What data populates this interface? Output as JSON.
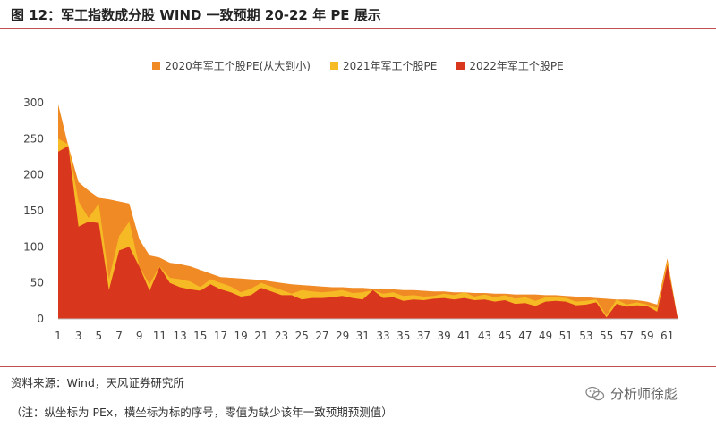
{
  "header": {
    "title": "图 12：军工指数成分股 WIND 一致预期 20-22 年 PE 展示"
  },
  "footer": {
    "source": "资料来源：Wind，天风证券研究所",
    "note": "（注：纵坐标为 PEx，横坐标为标的序号，零值为缺少该年一致预期预测值）",
    "watermark": "分析师徐彪"
  },
  "colors": {
    "s2020": "#f08a24",
    "s2021": "#f6bb24",
    "s2022": "#d9361e",
    "accent": "#c0504d"
  },
  "chart_data": {
    "type": "area",
    "ylim": [
      0,
      300
    ],
    "yticks": [
      0,
      50,
      100,
      150,
      200,
      250,
      300
    ],
    "xticks": [
      1,
      3,
      5,
      7,
      9,
      11,
      13,
      15,
      17,
      19,
      21,
      23,
      25,
      27,
      29,
      31,
      33,
      35,
      37,
      39,
      41,
      43,
      45,
      47,
      49,
      51,
      53,
      55,
      57,
      59,
      61
    ],
    "x": [
      1,
      2,
      3,
      4,
      5,
      6,
      7,
      8,
      9,
      10,
      11,
      12,
      13,
      14,
      15,
      16,
      17,
      18,
      19,
      20,
      21,
      22,
      23,
      24,
      25,
      26,
      27,
      28,
      29,
      30,
      31,
      32,
      33,
      34,
      35,
      36,
      37,
      38,
      39,
      40,
      41,
      42,
      43,
      44,
      45,
      46,
      47,
      48,
      49,
      50,
      51,
      52,
      53,
      54,
      55,
      56,
      57,
      58,
      59,
      60,
      61,
      62
    ],
    "series": [
      {
        "name": "2020年军工个股PE(从大到小)",
        "color_key": "s2020",
        "values": [
          298,
          240,
          190,
          178,
          168,
          166,
          163,
          160,
          110,
          88,
          85,
          78,
          76,
          73,
          68,
          63,
          58,
          57,
          56,
          55,
          54,
          52,
          50,
          48,
          47,
          46,
          45,
          44,
          44,
          43,
          43,
          42,
          42,
          41,
          40,
          40,
          39,
          38,
          38,
          37,
          37,
          36,
          36,
          35,
          35,
          34,
          34,
          34,
          33,
          33,
          32,
          31,
          30,
          29,
          28,
          27,
          27,
          26,
          24,
          20,
          84,
          2
        ]
      },
      {
        "name": "2021年军工个股PE",
        "color_key": "s2021",
        "values": [
          250,
          242,
          163,
          140,
          160,
          55,
          115,
          135,
          72,
          48,
          73,
          57,
          55,
          52,
          44,
          55,
          50,
          45,
          37,
          42,
          50,
          45,
          40,
          35,
          40,
          38,
          37,
          38,
          40,
          36,
          37,
          40,
          35,
          37,
          32,
          33,
          31,
          32,
          35,
          33,
          37,
          31,
          34,
          30,
          33,
          28,
          30,
          25,
          30,
          30,
          29,
          24,
          25,
          27,
          5,
          27,
          20,
          23,
          20,
          15,
          80,
          2
        ]
      },
      {
        "name": "2022年军工个股PE",
        "color_key": "s2022",
        "values": [
          232,
          240,
          128,
          135,
          133,
          40,
          95,
          100,
          72,
          39,
          72,
          50,
          44,
          41,
          39,
          48,
          41,
          37,
          31,
          33,
          43,
          38,
          33,
          33,
          27,
          29,
          29,
          30,
          32,
          29,
          27,
          40,
          29,
          30,
          25,
          27,
          26,
          28,
          29,
          27,
          29,
          26,
          27,
          24,
          26,
          21,
          22,
          18,
          24,
          25,
          24,
          19,
          20,
          23,
          2,
          21,
          17,
          19,
          18,
          10,
          75,
          2
        ]
      }
    ]
  }
}
